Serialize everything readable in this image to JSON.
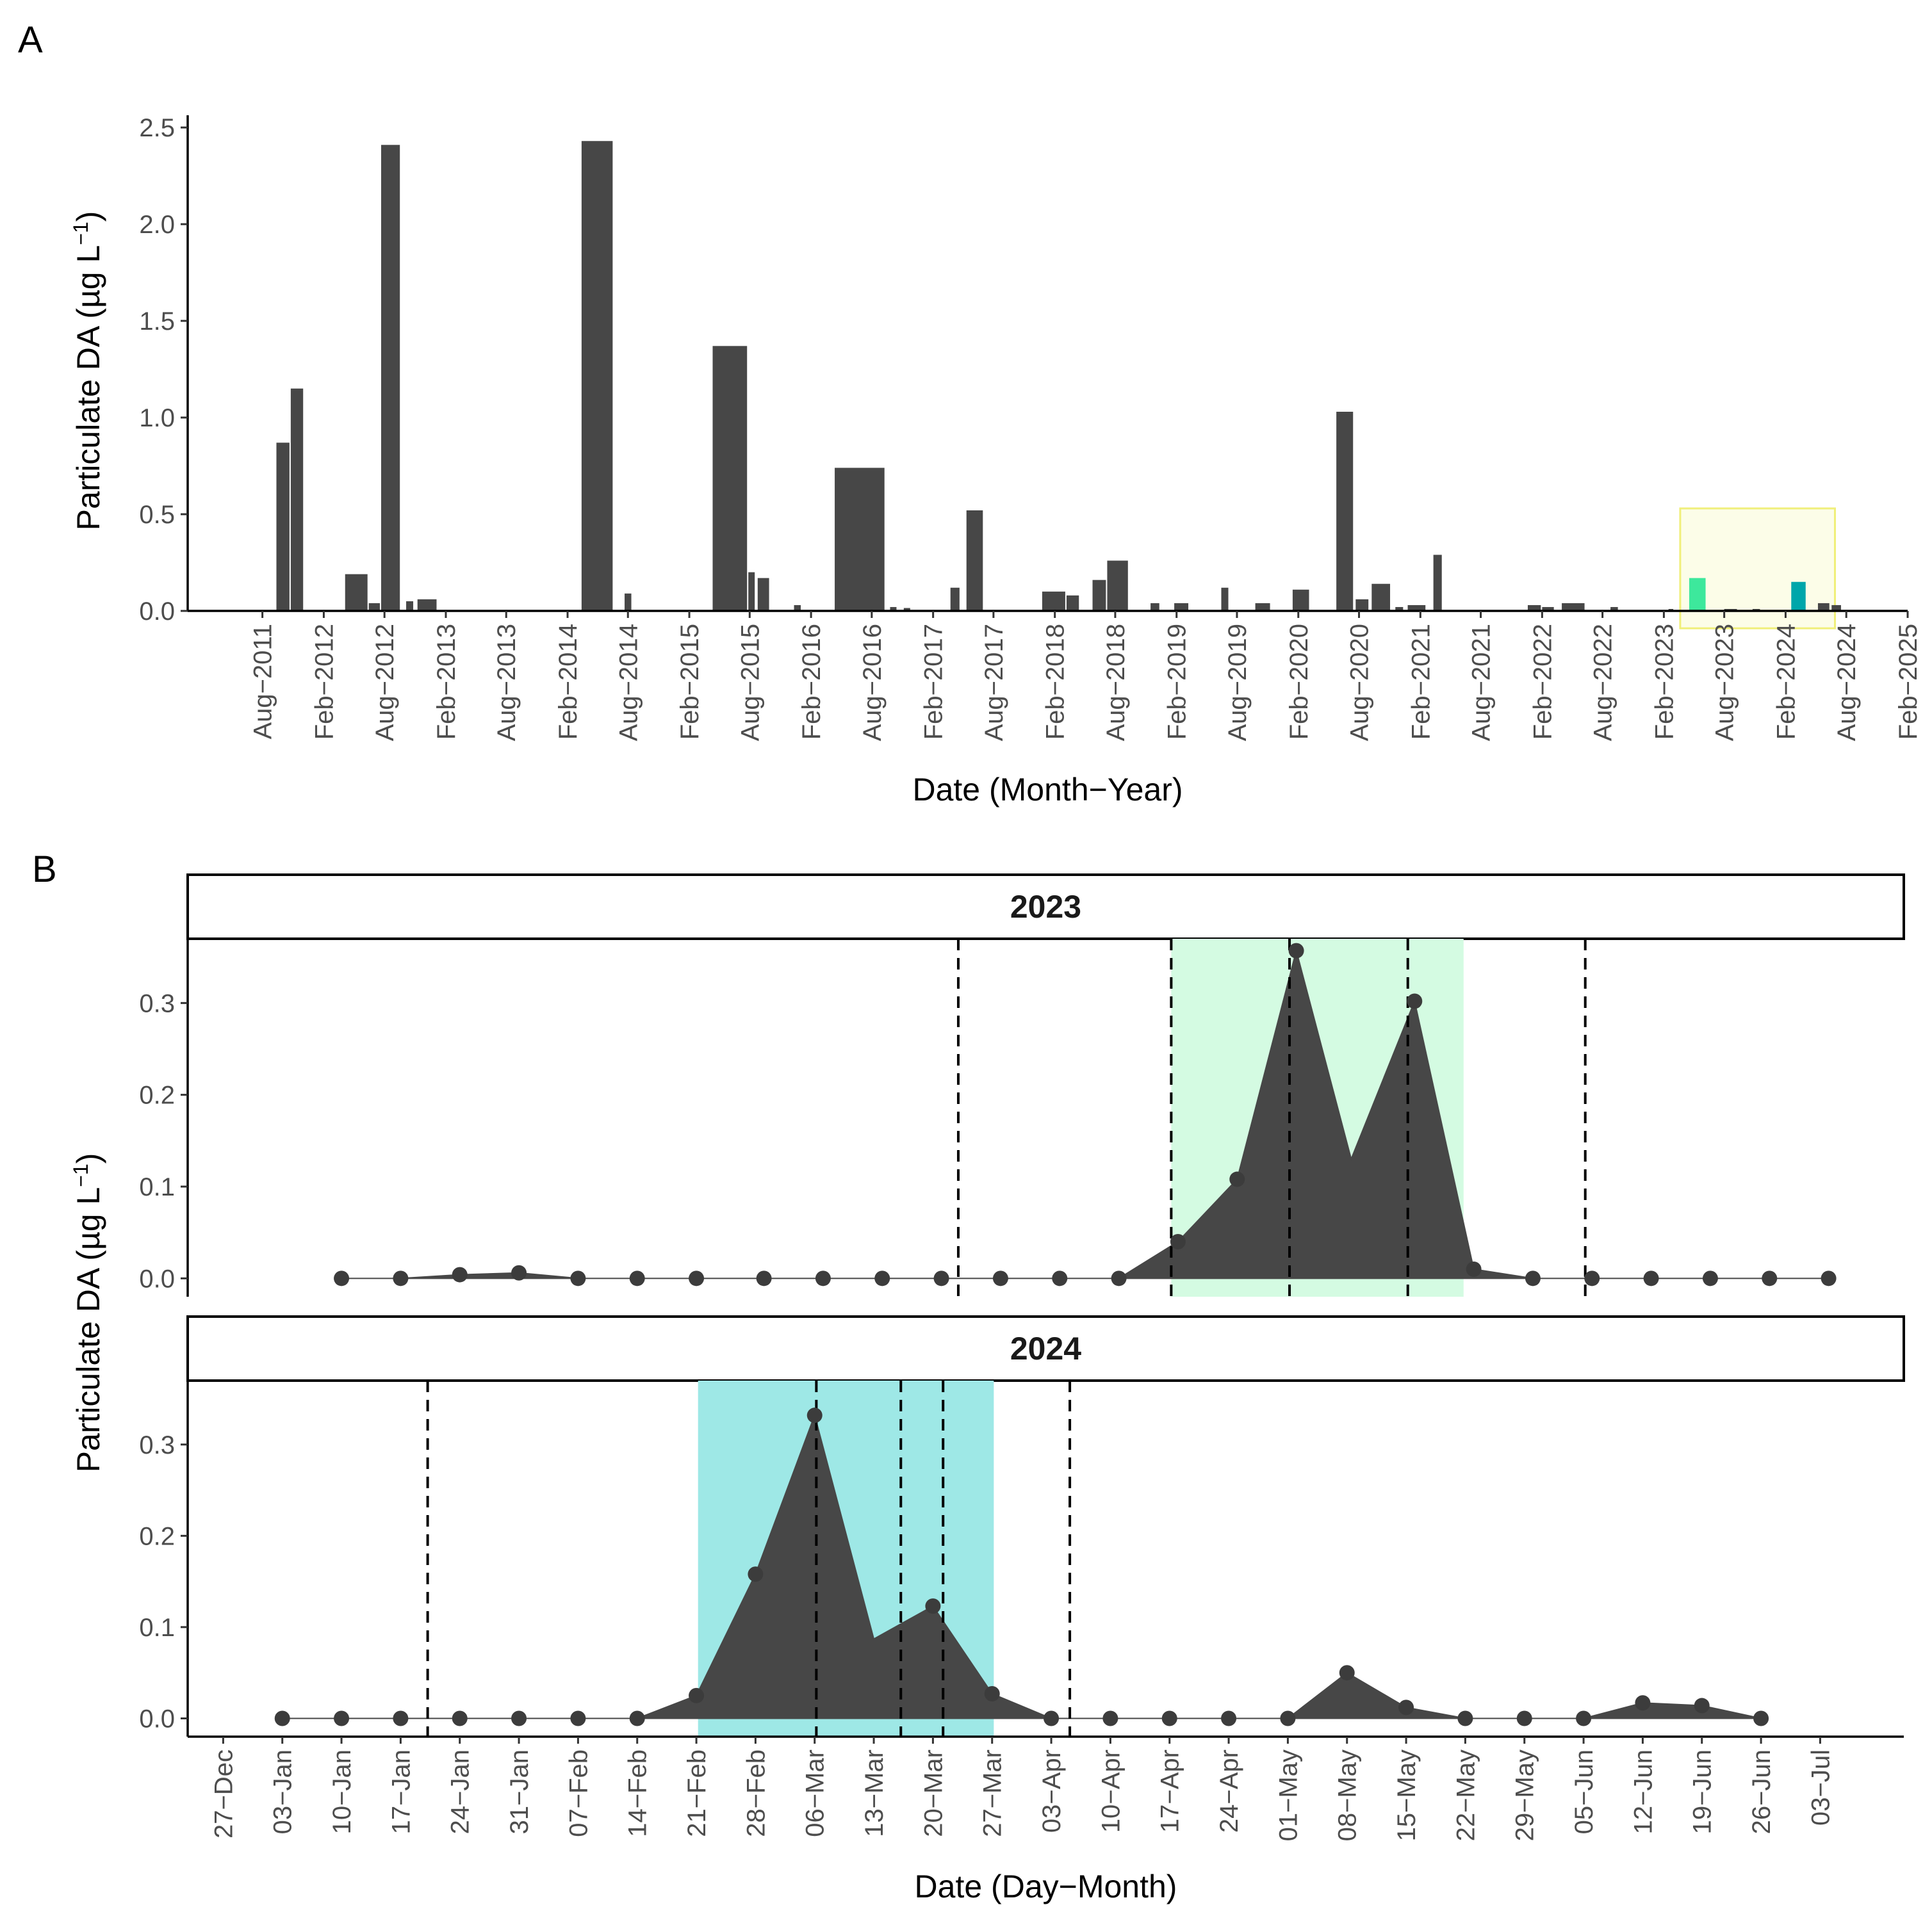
{
  "figure": {
    "panel_a_tag": "A",
    "panel_b_tag": "B"
  },
  "chart_data": [
    {
      "type": "bar",
      "panel": "A",
      "title": "",
      "xlabel": "Date (Month−Year)",
      "ylabel": "Particulate DA (µg L⁻¹)",
      "ylabel_parts": {
        "main": "Particulate DA (µg L",
        "sup": "−1",
        "close": ")"
      },
      "ylim": [
        0,
        2.55
      ],
      "yticks": [
        0,
        0.5,
        1,
        1.5,
        2,
        2.5
      ],
      "ytick_labels": [
        "0.0",
        "0.5",
        "1.0",
        "1.5",
        "2.0",
        "2.5"
      ],
      "xlim": [
        "2010-12-20",
        "2025-02-01"
      ],
      "xticks": [
        "2011-08-01",
        "2012-02-01",
        "2012-08-01",
        "2013-02-01",
        "2013-08-01",
        "2014-02-01",
        "2014-08-01",
        "2015-02-01",
        "2015-08-01",
        "2016-02-01",
        "2016-08-01",
        "2017-02-01",
        "2017-08-01",
        "2018-02-01",
        "2018-08-01",
        "2019-02-01",
        "2019-08-01",
        "2020-02-01",
        "2020-08-01",
        "2021-02-01",
        "2021-08-01",
        "2022-02-01",
        "2022-08-01",
        "2023-02-01",
        "2023-08-01",
        "2024-02-01",
        "2024-08-01",
        "2025-02-01"
      ],
      "xtick_labels": [
        "Aug−2011",
        "Feb−2012",
        "Aug−2012",
        "Feb−2013",
        "Aug−2013",
        "Feb−2014",
        "Aug−2014",
        "Feb−2015",
        "Aug−2015",
        "Feb−2016",
        "Aug−2016",
        "Feb−2017",
        "Aug−2017",
        "Feb−2018",
        "Aug−2018",
        "Feb−2019",
        "Aug−2019",
        "Feb−2020",
        "Aug−2020",
        "Feb−2021",
        "Aug−2021",
        "Feb−2022",
        "Aug−2022",
        "Feb−2023",
        "Aug−2023",
        "Feb−2024",
        "Aug−2024",
        "Feb−2025"
      ],
      "bars": [
        {
          "start": "2011-09-12",
          "end": "2011-10-25",
          "value": 0.87
        },
        {
          "start": "2011-10-25",
          "end": "2011-12-05",
          "value": 1.15
        },
        {
          "start": "2012-04-05",
          "end": "2012-06-15",
          "value": 0.19
        },
        {
          "start": "2012-06-15",
          "end": "2012-07-22",
          "value": 0.04
        },
        {
          "start": "2012-07-22",
          "end": "2012-09-20",
          "value": 2.41
        },
        {
          "start": "2012-10-05",
          "end": "2012-10-30",
          "value": 0.05
        },
        {
          "start": "2012-11-08",
          "end": "2013-01-08",
          "value": 0.06
        },
        {
          "start": "2014-03-15",
          "end": "2014-06-20",
          "value": 2.43
        },
        {
          "start": "2014-07-22",
          "end": "2014-08-15",
          "value": 0.09
        },
        {
          "start": "2015-04-12",
          "end": "2015-07-28",
          "value": 1.37
        },
        {
          "start": "2015-07-28",
          "end": "2015-08-20",
          "value": 0.2
        },
        {
          "start": "2015-08-25",
          "end": "2015-10-02",
          "value": 0.17
        },
        {
          "start": "2015-12-12",
          "end": "2016-01-05",
          "value": 0.03
        },
        {
          "start": "2016-04-12",
          "end": "2016-09-12",
          "value": 0.74
        },
        {
          "start": "2016-09-25",
          "end": "2016-10-18",
          "value": 0.02
        },
        {
          "start": "2016-11-05",
          "end": "2016-11-28",
          "value": 0.015
        },
        {
          "start": "2017-03-25",
          "end": "2017-04-25",
          "value": 0.12
        },
        {
          "start": "2017-05-12",
          "end": "2017-07-04",
          "value": 0.52
        },
        {
          "start": "2017-12-25",
          "end": "2018-03-08",
          "value": 0.1
        },
        {
          "start": "2018-03-08",
          "end": "2018-04-18",
          "value": 0.08
        },
        {
          "start": "2018-05-25",
          "end": "2018-07-08",
          "value": 0.16
        },
        {
          "start": "2018-07-08",
          "end": "2018-09-12",
          "value": 0.26
        },
        {
          "start": "2018-11-15",
          "end": "2018-12-15",
          "value": 0.04
        },
        {
          "start": "2019-01-25",
          "end": "2019-03-12",
          "value": 0.04
        },
        {
          "start": "2019-06-15",
          "end": "2019-07-10",
          "value": 0.12
        },
        {
          "start": "2019-09-25",
          "end": "2019-11-12",
          "value": 0.04
        },
        {
          "start": "2020-01-15",
          "end": "2020-03-08",
          "value": 0.11
        },
        {
          "start": "2020-05-25",
          "end": "2020-07-18",
          "value": 1.03
        },
        {
          "start": "2020-07-22",
          "end": "2020-09-02",
          "value": 0.06
        },
        {
          "start": "2020-09-08",
          "end": "2020-11-06",
          "value": 0.14
        },
        {
          "start": "2020-11-18",
          "end": "2020-12-15",
          "value": 0.02
        },
        {
          "start": "2020-12-25",
          "end": "2021-02-20",
          "value": 0.03
        },
        {
          "start": "2021-03-12",
          "end": "2021-04-10",
          "value": 0.29
        },
        {
          "start": "2021-12-20",
          "end": "2022-02-01",
          "value": 0.03
        },
        {
          "start": "2022-02-01",
          "end": "2022-03-12",
          "value": 0.02
        },
        {
          "start": "2022-04-01",
          "end": "2022-06-12",
          "value": 0.04
        },
        {
          "start": "2022-08-25",
          "end": "2022-09-20",
          "value": 0.02
        },
        {
          "start": "2023-02-15",
          "end": "2023-03-05",
          "value": 0.01
        },
        {
          "start": "2023-04-18",
          "end": "2023-06-10",
          "value": 0.17,
          "color": "#3de89c"
        },
        {
          "start": "2023-08-01",
          "end": "2023-09-12",
          "value": 0.01
        },
        {
          "start": "2023-10-25",
          "end": "2023-11-20",
          "value": 0.01
        },
        {
          "start": "2024-02-18",
          "end": "2024-04-05",
          "value": 0.15,
          "color": "#00a6aa"
        },
        {
          "start": "2024-05-08",
          "end": "2024-06-15",
          "value": 0.04
        },
        {
          "start": "2024-06-18",
          "end": "2024-07-20",
          "value": 0.03
        }
      ],
      "highlight_box": {
        "x_start": "2023-03-22",
        "x_end": "2024-06-28",
        "y_min": -0.09,
        "y_max": 0.53,
        "fill": "#fcfde8",
        "stroke": "#f0ef7a"
      }
    },
    {
      "type": "area",
      "panel": "B",
      "title": "",
      "xlabel": "Date (Day−Month)",
      "ylabel": "Particulate DA (µg L⁻¹)",
      "ylabel_parts": {
        "main": "Particulate DA (µg L",
        "sup": "−1",
        "close": ")"
      },
      "ylim": [
        -0.02,
        0.37
      ],
      "yticks": [
        0,
        0.1,
        0.2,
        0.3
      ],
      "ytick_labels": [
        "0.0",
        "0.1",
        "0.2",
        "0.3"
      ],
      "x_units": "day of year",
      "xlim": [
        -9.2,
        193.9
      ],
      "xticks": [
        -5,
        2,
        9,
        16,
        23,
        30,
        37,
        44,
        51,
        58,
        65,
        72,
        79,
        86,
        93,
        100,
        107,
        114,
        121,
        128,
        135,
        142,
        149,
        156,
        163,
        170,
        177,
        184
      ],
      "xtick_labels": [
        "27−Dec",
        "03−Jan",
        "10−Jan",
        "17−Jan",
        "24−Jan",
        "31−Jan",
        "07−Feb",
        "14−Feb",
        "21−Feb",
        "28−Feb",
        "06−Mar",
        "13−Mar",
        "20−Mar",
        "27−Mar",
        "03−Apr",
        "10−Apr",
        "17−Apr",
        "24−Apr",
        "01−May",
        "08−May",
        "15−May",
        "22−May",
        "29−May",
        "05−Jun",
        "12−Jun",
        "19−Jun",
        "26−Jun",
        "03−Jul"
      ],
      "facets": [
        {
          "strip_label": "2023",
          "shade": {
            "x_start": 107.2,
            "x_end": 141.8,
            "color": "#d4fbe2"
          },
          "vlines": [
            82,
            107.2,
            121.2,
            135.2,
            156.2
          ],
          "series": [
            {
              "values": [
                [
                  9,
                  0
                ],
                [
                  16,
                  0
                ],
                [
                  23,
                  0.004
                ],
                [
                  30,
                  0.006
                ],
                [
                  37,
                  0
                ],
                [
                  44,
                  0
                ],
                [
                  51,
                  0
                ],
                [
                  59,
                  0
                ],
                [
                  66,
                  0
                ],
                [
                  73,
                  0
                ],
                [
                  80,
                  0
                ],
                [
                  87,
                  0
                ],
                [
                  94,
                  0
                ],
                [
                  101,
                  0
                ],
                [
                  108,
                  0.04
                ],
                [
                  115,
                  0.108
                ],
                [
                  122,
                  0.357
                ],
                [
                  128.5,
                  0.13
                ],
                [
                  136,
                  0.302
                ],
                [
                  143,
                  0.01
                ],
                [
                  150,
                  0
                ],
                [
                  157,
                  0
                ],
                [
                  164,
                  0
                ],
                [
                  171,
                  0
                ],
                [
                  178,
                  0
                ],
                [
                  185,
                  0
                ]
              ],
              "markers": [
                [
                  9,
                  0
                ],
                [
                  16,
                  0
                ],
                [
                  23,
                  0.004
                ],
                [
                  30,
                  0.006
                ],
                [
                  37,
                  0
                ],
                [
                  44,
                  0
                ],
                [
                  51,
                  0
                ],
                [
                  59,
                  0
                ],
                [
                  66,
                  0
                ],
                [
                  73,
                  0
                ],
                [
                  80,
                  0
                ],
                [
                  87,
                  0
                ],
                [
                  94,
                  0
                ],
                [
                  101,
                  0
                ],
                [
                  108,
                  0.04
                ],
                [
                  115,
                  0.108
                ],
                [
                  122,
                  0.357
                ],
                [
                  136,
                  0.302
                ],
                [
                  143,
                  0.01
                ],
                [
                  150,
                  0
                ],
                [
                  157,
                  0
                ],
                [
                  164,
                  0
                ],
                [
                  171,
                  0
                ],
                [
                  178,
                  0
                ],
                [
                  185,
                  0
                ]
              ]
            }
          ]
        },
        {
          "strip_label": "2024",
          "shade": {
            "x_start": 51.2,
            "x_end": 86.2,
            "color": "#9ee8e6"
          },
          "vlines": [
            19.2,
            65.2,
            75.2,
            80.2,
            95.2
          ],
          "series": [
            {
              "values": [
                [
                  2,
                  0
                ],
                [
                  9,
                  0
                ],
                [
                  16,
                  0
                ],
                [
                  23,
                  0
                ],
                [
                  30,
                  0
                ],
                [
                  37,
                  0
                ],
                [
                  44,
                  0
                ],
                [
                  51,
                  0.025
                ],
                [
                  58,
                  0.158
                ],
                [
                  65,
                  0.332
                ],
                [
                  72,
                  0.087
                ],
                [
                  79,
                  0.123
                ],
                [
                  86,
                  0.027
                ],
                [
                  93,
                  0
                ],
                [
                  100,
                  0
                ],
                [
                  107,
                  0
                ],
                [
                  114,
                  0
                ],
                [
                  121,
                  0
                ],
                [
                  128,
                  0.05
                ],
                [
                  135,
                  0.012
                ],
                [
                  142,
                  0
                ],
                [
                  149,
                  0
                ],
                [
                  156,
                  0
                ],
                [
                  163,
                  0.017
                ],
                [
                  170,
                  0.014
                ],
                [
                  177,
                  0
                ]
              ],
              "markers": [
                [
                  2,
                  0
                ],
                [
                  9,
                  0
                ],
                [
                  16,
                  0
                ],
                [
                  23,
                  0
                ],
                [
                  30,
                  0
                ],
                [
                  37,
                  0
                ],
                [
                  44,
                  0
                ],
                [
                  51,
                  0.025
                ],
                [
                  58,
                  0.158
                ],
                [
                  65,
                  0.332
                ],
                [
                  79,
                  0.123
                ],
                [
                  86,
                  0.027
                ],
                [
                  93,
                  0
                ],
                [
                  100,
                  0
                ],
                [
                  107,
                  0
                ],
                [
                  114,
                  0
                ],
                [
                  121,
                  0
                ],
                [
                  128,
                  0.05
                ],
                [
                  135,
                  0.012
                ],
                [
                  142,
                  0
                ],
                [
                  149,
                  0
                ],
                [
                  156,
                  0
                ],
                [
                  163,
                  0.017
                ],
                [
                  170,
                  0.014
                ],
                [
                  177,
                  0
                ]
              ]
            }
          ]
        }
      ]
    }
  ]
}
